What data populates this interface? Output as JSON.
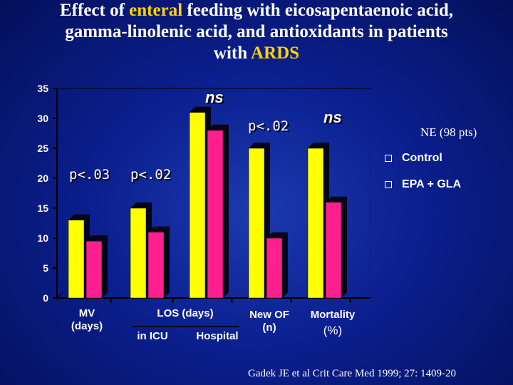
{
  "title": {
    "line1_a": "Effect of ",
    "line1_hl": "enteral",
    "line1_b": " feeding with eicosapentaenoic acid,",
    "line2": "gamma-linolenic acid, and antioxidants in patients",
    "line3_a": "with ",
    "line3_hl": "ARDS"
  },
  "annotations": {
    "p1": "p<.03",
    "p2": "p<.02",
    "ns1": "ns",
    "p3": "p<.02",
    "ns2": "ns"
  },
  "legend": {
    "title": "NE (98 pts)",
    "control": "Control",
    "epa": "EPA + GLA"
  },
  "category_labels": {
    "mv": "MV",
    "mv_unit": "(days)",
    "los": "LOS (days)",
    "icu": "in ICU",
    "hospital": "Hospital",
    "newof": "New OF",
    "newof_unit": "(n)",
    "mortality": "Mortality",
    "mortality_unit": "(%)"
  },
  "citation": "Gadek JE et al  Crit Care Med  1999; 27: 1409-20",
  "colors": {
    "control": "#ffff00",
    "epa": "#ff1f8f",
    "axis": "#000000",
    "highlight": "#ffd400"
  },
  "chart_data": {
    "type": "bar",
    "categories": [
      "MV (days)",
      "LOS in ICU (days)",
      "LOS Hospital (days)",
      "New OF (n)",
      "Mortality (%)"
    ],
    "series": [
      {
        "name": "Control",
        "values": [
          13,
          15,
          31,
          25,
          25
        ]
      },
      {
        "name": "EPA + GLA",
        "values": [
          9.5,
          11,
          28,
          10,
          16
        ]
      }
    ],
    "ylim": [
      0,
      35
    ],
    "yticks": [
      0,
      5,
      10,
      15,
      20,
      25,
      30,
      35
    ],
    "legend_position": "right"
  }
}
